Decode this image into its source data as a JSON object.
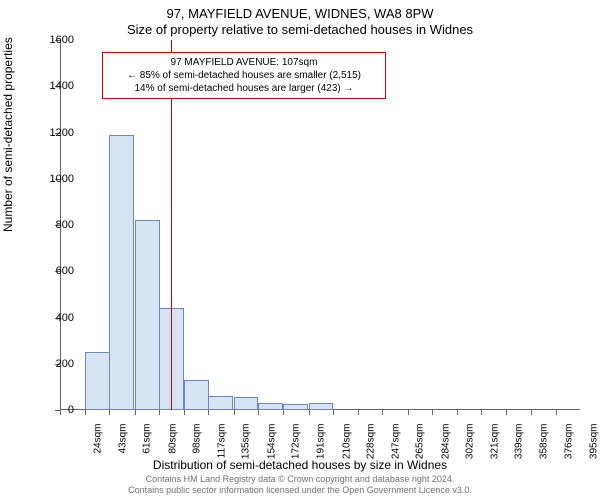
{
  "title": {
    "line1": "97, MAYFIELD AVENUE, WIDNES, WA8 8PW",
    "line2": "Size of property relative to semi-detached houses in Widnes"
  },
  "ylabel": "Number of semi-detached properties",
  "xlabel": "Distribution of semi-detached houses by size in Widnes",
  "copyright": {
    "line1": "Contains HM Land Registry data © Crown copyright and database right 2024.",
    "line2": "Contains public sector information licensed under the Open Government Licence v3.0."
  },
  "annotation": {
    "line1": "97 MAYFIELD AVENUE: 107sqm",
    "line2": "← 85% of semi-detached houses are smaller (2,515)",
    "line3": "14% of semi-detached houses are larger (423) →"
  },
  "chart": {
    "type": "histogram",
    "background_color": "#ffffff",
    "bar_fill": "#d8e3f2",
    "bar_border": "#6a89b8",
    "marker_color": "#cc0000",
    "marker_x_value": 107,
    "ylim": [
      0,
      1600
    ],
    "ytick_step": 200,
    "xlim": [
      24,
      413
    ],
    "bar_width_sqm": 18.5,
    "categories": [
      "24sqm",
      "43sqm",
      "61sqm",
      "80sqm",
      "98sqm",
      "117sqm",
      "135sqm",
      "154sqm",
      "172sqm",
      "191sqm",
      "210sqm",
      "228sqm",
      "247sqm",
      "265sqm",
      "284sqm",
      "302sqm",
      "321sqm",
      "339sqm",
      "358sqm",
      "376sqm",
      "395sqm"
    ],
    "values": [
      0,
      250,
      1190,
      820,
      440,
      130,
      60,
      55,
      30,
      25,
      30,
      0,
      0,
      0,
      0,
      0,
      0,
      0,
      0,
      0,
      0
    ],
    "axis_color": "#666666",
    "tick_fontsize": 11,
    "label_fontsize": 12,
    "title_fontsize": 13
  }
}
